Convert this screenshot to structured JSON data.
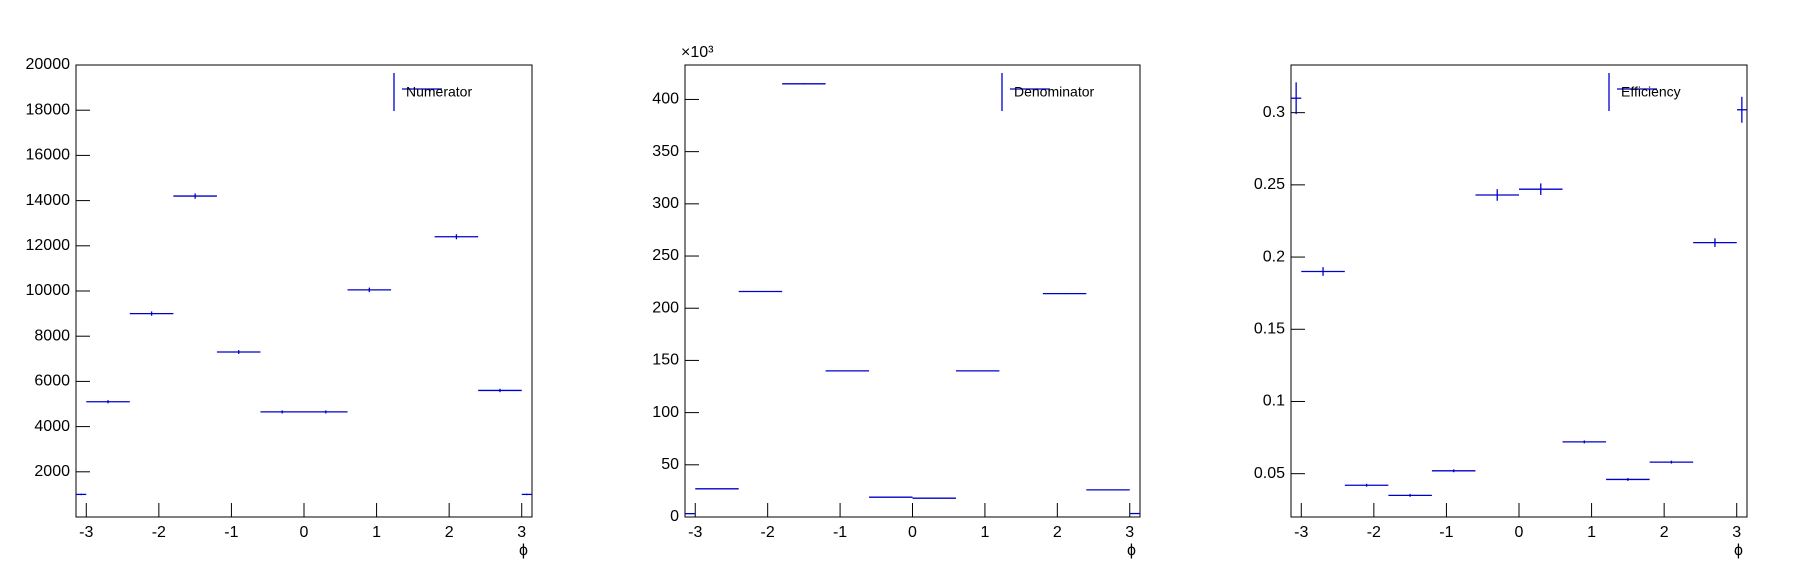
{
  "chart_data": [
    {
      "type": "histogram",
      "xlabel": "ϕ",
      "legend": "upper right",
      "bins": [
        -3.1416,
        -3,
        -2.4,
        -1.8,
        -1.2,
        -0.6,
        0,
        0.6,
        1.2,
        1.8,
        2.4,
        3,
        3.1416
      ],
      "series": [
        {
          "name": "Numerator",
          "color": "#0000cc",
          "values": [
            1000,
            5100,
            9000,
            14200,
            7300,
            4650,
            4650,
            10050,
            null,
            12400,
            5600,
            1000
          ],
          "errors": [
            32,
            71,
            95,
            119,
            85,
            68,
            68,
            100,
            null,
            111,
            75,
            32
          ]
        }
      ],
      "xlim": [
        -3.1416,
        3.1416
      ],
      "xticks": [
        -3,
        -2,
        -1,
        0,
        1,
        2,
        3
      ],
      "ylim": [
        0,
        20000
      ],
      "yticks": [
        2000,
        4000,
        6000,
        8000,
        10000,
        12000,
        14000,
        16000,
        18000,
        20000
      ]
    },
    {
      "type": "histogram",
      "xlabel": "ϕ",
      "legend": "upper right",
      "y_multiplier": "×10³",
      "bins": [
        -3.1416,
        -3,
        -2.4,
        -1.8,
        -1.2,
        -0.6,
        0,
        0.6,
        1.2,
        1.8,
        2.4,
        3,
        3.1416
      ],
      "series": [
        {
          "name": "Denominator",
          "color": "#0000cc",
          "values": [
            3.2,
            27,
            216,
            415,
            140,
            19,
            18,
            140,
            null,
            214,
            26,
            3.3
          ],
          "errors": [
            0.06,
            0.16,
            0.46,
            0.64,
            0.37,
            0.14,
            0.13,
            0.37,
            null,
            0.46,
            0.16,
            0.06
          ]
        }
      ],
      "xlim": [
        -3.1416,
        3.1416
      ],
      "xticks": [
        -3,
        -2,
        -1,
        0,
        1,
        2,
        3
      ],
      "ylim": [
        0,
        433
      ],
      "yticks": [
        0,
        50,
        100,
        150,
        200,
        250,
        300,
        350,
        400
      ]
    },
    {
      "type": "histogram",
      "xlabel": "ϕ",
      "legend": "upper right",
      "bins": [
        -3.1416,
        -3,
        -2.4,
        -1.8,
        -1.2,
        -0.6,
        0,
        0.6,
        1.2,
        1.8,
        2.4,
        3,
        3.1416
      ],
      "series": [
        {
          "name": "Efficiency",
          "color": "#0000cc",
          "values": [
            0.31,
            0.19,
            0.042,
            0.035,
            0.052,
            0.243,
            0.247,
            0.072,
            0.046,
            0.058,
            0.21,
            0.302
          ],
          "errors": [
            0.011,
            0.003,
            0.001,
            0.001,
            0.001,
            0.004,
            0.004,
            0.001,
            0.001,
            0.001,
            0.003,
            0.009
          ]
        }
      ],
      "xlim": [
        -3.1416,
        3.1416
      ],
      "xticks": [
        -3,
        -2,
        -1,
        0,
        1,
        2,
        3
      ],
      "ylim": [
        0.02,
        0.333
      ],
      "yticks": [
        0.05,
        0.1,
        0.15,
        0.2,
        0.25,
        0.3
      ]
    }
  ]
}
